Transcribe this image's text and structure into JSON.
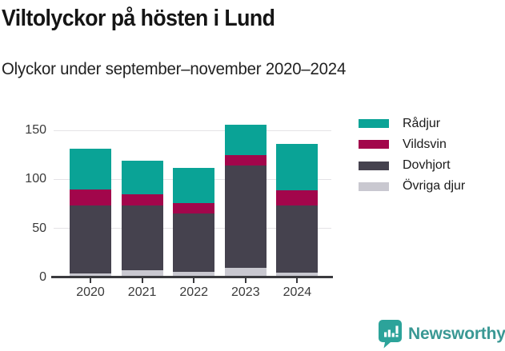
{
  "header": {
    "title": "Viltolyckor på hösten i Lund",
    "subtitle": "Olyckor under september–november 2020–2024"
  },
  "chart_data": {
    "type": "bar",
    "stacked": true,
    "title": "Viltolyckor på hösten i Lund",
    "subtitle": "Olyckor under september–november 2020–2024",
    "categories": [
      "2020",
      "2021",
      "2022",
      "2023",
      "2024"
    ],
    "series": [
      {
        "name": "Rådjur",
        "color": "#0aa396",
        "values": [
          41,
          34,
          36,
          31,
          47
        ]
      },
      {
        "name": "Vildsvin",
        "color": "#a2064b",
        "values": [
          17,
          12,
          11,
          11,
          16
        ]
      },
      {
        "name": "Dovhjort",
        "color": "#45424e",
        "values": [
          69,
          66,
          59,
          104,
          68
        ]
      },
      {
        "name": "Övriga djur",
        "color": "#c9c8d0",
        "values": [
          4,
          7,
          6,
          10,
          5
        ]
      }
    ],
    "stack_order_bottom_to_top": [
      "Övriga djur",
      "Dovhjort",
      "Vildsvin",
      "Rådjur"
    ],
    "totals": [
      131,
      119,
      112,
      156,
      136
    ],
    "yticks": [
      0,
      50,
      100,
      150
    ],
    "ylim": [
      0,
      163
    ],
    "xlabel": "",
    "ylabel": "",
    "grid": true,
    "legend_position": "right"
  },
  "footer": {
    "brand": "Newsworthy"
  },
  "colors": {
    "axis": "#3a3a3e",
    "grid": "#e4e3e6",
    "brand_text": "#3a9894",
    "brand_icon": "#2ca39a"
  }
}
